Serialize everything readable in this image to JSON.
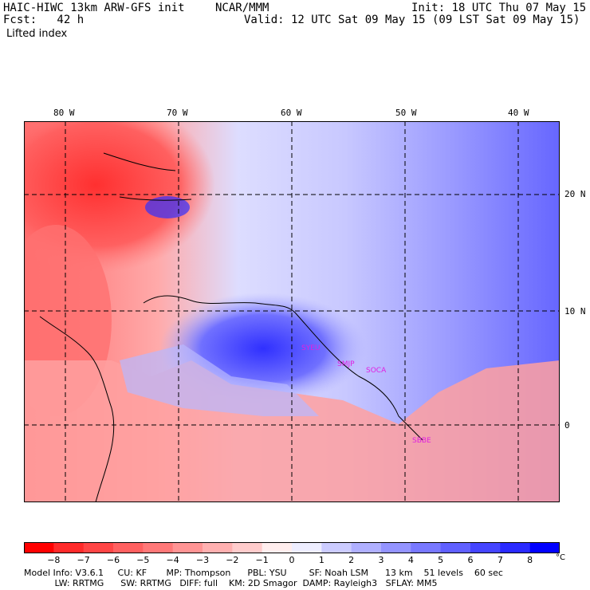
{
  "header": {
    "title": "HAIC-HIWC 13km ARW-GFS init",
    "org": "NCAR/MMM",
    "init": "Init: 18 UTC Thu 07 May 15",
    "fcst": "Fcst:   42 h",
    "valid": "Valid: 12 UTC Sat 09 May 15 (09 LST Sat 09 May 15)",
    "field": "Lifted index"
  },
  "map": {
    "lon_labels": [
      "80 W",
      "70 W",
      "60 W",
      "50 W",
      "40 W"
    ],
    "lat_labels": [
      "20 N",
      "10 N",
      "0"
    ],
    "stations": [
      "SYEU",
      "SMJP",
      "SOCA",
      "SBBE"
    ],
    "colors": {
      "negative": "#ff2020",
      "neutral": "#ffffff",
      "positive": "#2020ff"
    }
  },
  "colorbar": {
    "labels": [
      "−8",
      "−7",
      "−6",
      "−5",
      "−4",
      "−3",
      "−2",
      "−1",
      "0",
      "1",
      "2",
      "3",
      "4",
      "5",
      "6",
      "7",
      "8"
    ],
    "unit": "°C",
    "colors": [
      "#ff0000",
      "#ff2a2a",
      "#ff4545",
      "#ff6060",
      "#ff7878",
      "#ff9494",
      "#ffb0b0",
      "#ffcccc",
      "#ffeeee",
      "#eeeeff",
      "#ccccff",
      "#b0b0ff",
      "#9494ff",
      "#7878ff",
      "#6060ff",
      "#4545ff",
      "#2a2aff",
      "#0000ff"
    ]
  },
  "footer": {
    "line1": "Model Info: V3.6.1     CU: KF       MP: Thompson      PBL: YSU        SF: Noah LSM      13 km    51 levels    60 sec",
    "line2": "           LW: RRTMG      SW: RRTMG   DIFF: full    KM: 2D Smagor  DAMP: Rayleigh3   SFLAY: MM5"
  }
}
